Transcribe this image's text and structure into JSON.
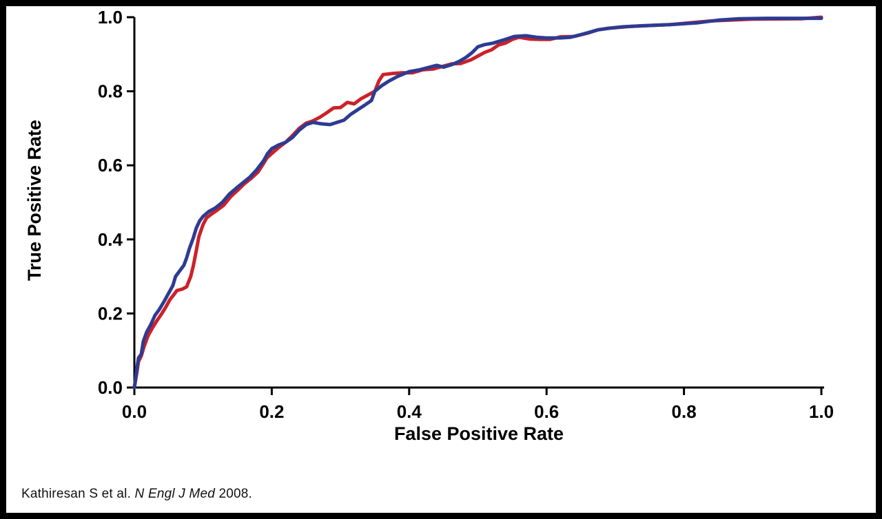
{
  "colors": {
    "background": "#ffffff",
    "frame": "#000000",
    "axis": "#000000",
    "red_curve": "#cc2129",
    "blue_curve": "#2d3b92"
  },
  "citation": {
    "authors": "Kathiresan S et al. ",
    "journal": "N Engl J Med",
    "year": " 2008."
  },
  "chart_data": {
    "type": "line",
    "title": "",
    "xlabel": "False Positive Rate",
    "ylabel": "True Positive Rate",
    "xlim": [
      0,
      1
    ],
    "ylim": [
      0,
      1
    ],
    "grid": false,
    "legend": "none",
    "x_ticks": {
      "values": [
        0,
        0.2,
        0.4,
        0.6,
        0.8,
        1.0
      ],
      "labels": [
        "0.0",
        "0.2",
        "0.4",
        "0.6",
        "0.8",
        "1.0"
      ]
    },
    "y_ticks": {
      "values": [
        0,
        0.2,
        0.4,
        0.6,
        0.8,
        1.0
      ],
      "labels": [
        "0.0",
        "0.2",
        "0.4",
        "0.6",
        "0.8",
        "1.0"
      ]
    },
    "series": [
      {
        "name": "roc-curve-red",
        "color": "#cc2129",
        "points": [
          [
            0,
            0
          ],
          [
            0.004,
            0.045
          ],
          [
            0.006,
            0.07
          ],
          [
            0.01,
            0.085
          ],
          [
            0.014,
            0.11
          ],
          [
            0.02,
            0.14
          ],
          [
            0.026,
            0.16
          ],
          [
            0.032,
            0.178
          ],
          [
            0.04,
            0.2
          ],
          [
            0.046,
            0.218
          ],
          [
            0.052,
            0.238
          ],
          [
            0.058,
            0.252
          ],
          [
            0.062,
            0.262
          ],
          [
            0.07,
            0.266
          ],
          [
            0.076,
            0.272
          ],
          [
            0.082,
            0.3
          ],
          [
            0.086,
            0.33
          ],
          [
            0.09,
            0.368
          ],
          [
            0.094,
            0.408
          ],
          [
            0.1,
            0.44
          ],
          [
            0.105,
            0.458
          ],
          [
            0.112,
            0.468
          ],
          [
            0.12,
            0.478
          ],
          [
            0.13,
            0.492
          ],
          [
            0.14,
            0.515
          ],
          [
            0.15,
            0.532
          ],
          [
            0.16,
            0.55
          ],
          [
            0.17,
            0.565
          ],
          [
            0.18,
            0.582
          ],
          [
            0.187,
            0.602
          ],
          [
            0.193,
            0.62
          ],
          [
            0.2,
            0.632
          ],
          [
            0.21,
            0.648
          ],
          [
            0.22,
            0.662
          ],
          [
            0.23,
            0.68
          ],
          [
            0.24,
            0.7
          ],
          [
            0.25,
            0.714
          ],
          [
            0.26,
            0.72
          ],
          [
            0.27,
            0.73
          ],
          [
            0.28,
            0.742
          ],
          [
            0.29,
            0.755
          ],
          [
            0.3,
            0.756
          ],
          [
            0.31,
            0.77
          ],
          [
            0.32,
            0.766
          ],
          [
            0.33,
            0.78
          ],
          [
            0.34,
            0.79
          ],
          [
            0.35,
            0.8
          ],
          [
            0.356,
            0.828
          ],
          [
            0.362,
            0.845
          ],
          [
            0.375,
            0.848
          ],
          [
            0.39,
            0.85
          ],
          [
            0.405,
            0.85
          ],
          [
            0.42,
            0.858
          ],
          [
            0.435,
            0.86
          ],
          [
            0.45,
            0.868
          ],
          [
            0.462,
            0.874
          ],
          [
            0.475,
            0.875
          ],
          [
            0.49,
            0.885
          ],
          [
            0.5,
            0.895
          ],
          [
            0.51,
            0.905
          ],
          [
            0.52,
            0.912
          ],
          [
            0.53,
            0.925
          ],
          [
            0.54,
            0.93
          ],
          [
            0.55,
            0.94
          ],
          [
            0.56,
            0.946
          ],
          [
            0.575,
            0.941
          ],
          [
            0.59,
            0.94
          ],
          [
            0.605,
            0.94
          ],
          [
            0.62,
            0.947
          ],
          [
            0.64,
            0.948
          ],
          [
            0.66,
            0.957
          ],
          [
            0.675,
            0.966
          ],
          [
            0.69,
            0.97
          ],
          [
            0.72,
            0.975
          ],
          [
            0.78,
            0.98
          ],
          [
            0.84,
            0.99
          ],
          [
            0.9,
            0.995
          ],
          [
            0.97,
            0.996
          ],
          [
            1,
            1
          ]
        ]
      },
      {
        "name": "roc-curve-blue",
        "color": "#2d3b92",
        "points": [
          [
            0,
            0
          ],
          [
            0.004,
            0.055
          ],
          [
            0.006,
            0.08
          ],
          [
            0.01,
            0.09
          ],
          [
            0.013,
            0.125
          ],
          [
            0.018,
            0.15
          ],
          [
            0.024,
            0.17
          ],
          [
            0.03,
            0.195
          ],
          [
            0.036,
            0.21
          ],
          [
            0.044,
            0.235
          ],
          [
            0.05,
            0.255
          ],
          [
            0.056,
            0.275
          ],
          [
            0.06,
            0.3
          ],
          [
            0.066,
            0.315
          ],
          [
            0.072,
            0.33
          ],
          [
            0.076,
            0.35
          ],
          [
            0.08,
            0.375
          ],
          [
            0.086,
            0.405
          ],
          [
            0.09,
            0.43
          ],
          [
            0.095,
            0.45
          ],
          [
            0.1,
            0.462
          ],
          [
            0.108,
            0.475
          ],
          [
            0.118,
            0.485
          ],
          [
            0.128,
            0.5
          ],
          [
            0.138,
            0.522
          ],
          [
            0.148,
            0.538
          ],
          [
            0.158,
            0.553
          ],
          [
            0.168,
            0.568
          ],
          [
            0.178,
            0.588
          ],
          [
            0.188,
            0.612
          ],
          [
            0.194,
            0.632
          ],
          [
            0.2,
            0.645
          ],
          [
            0.21,
            0.655
          ],
          [
            0.22,
            0.662
          ],
          [
            0.23,
            0.675
          ],
          [
            0.24,
            0.695
          ],
          [
            0.25,
            0.71
          ],
          [
            0.26,
            0.716
          ],
          [
            0.272,
            0.712
          ],
          [
            0.285,
            0.71
          ],
          [
            0.295,
            0.716
          ],
          [
            0.305,
            0.722
          ],
          [
            0.315,
            0.738
          ],
          [
            0.325,
            0.75
          ],
          [
            0.335,
            0.762
          ],
          [
            0.345,
            0.775
          ],
          [
            0.35,
            0.8
          ],
          [
            0.36,
            0.815
          ],
          [
            0.37,
            0.827
          ],
          [
            0.383,
            0.84
          ],
          [
            0.4,
            0.853
          ],
          [
            0.415,
            0.858
          ],
          [
            0.43,
            0.865
          ],
          [
            0.44,
            0.87
          ],
          [
            0.45,
            0.865
          ],
          [
            0.462,
            0.872
          ],
          [
            0.472,
            0.88
          ],
          [
            0.483,
            0.892
          ],
          [
            0.492,
            0.905
          ],
          [
            0.5,
            0.92
          ],
          [
            0.51,
            0.926
          ],
          [
            0.522,
            0.93
          ],
          [
            0.54,
            0.94
          ],
          [
            0.553,
            0.948
          ],
          [
            0.57,
            0.95
          ],
          [
            0.585,
            0.946
          ],
          [
            0.6,
            0.944
          ],
          [
            0.62,
            0.944
          ],
          [
            0.635,
            0.946
          ],
          [
            0.648,
            0.952
          ],
          [
            0.66,
            0.958
          ],
          [
            0.675,
            0.966
          ],
          [
            0.69,
            0.97
          ],
          [
            0.71,
            0.974
          ],
          [
            0.74,
            0.977
          ],
          [
            0.78,
            0.98
          ],
          [
            0.82,
            0.985
          ],
          [
            0.85,
            0.992
          ],
          [
            0.88,
            0.996
          ],
          [
            0.92,
            0.997
          ],
          [
            1,
            0.997
          ]
        ]
      }
    ]
  }
}
